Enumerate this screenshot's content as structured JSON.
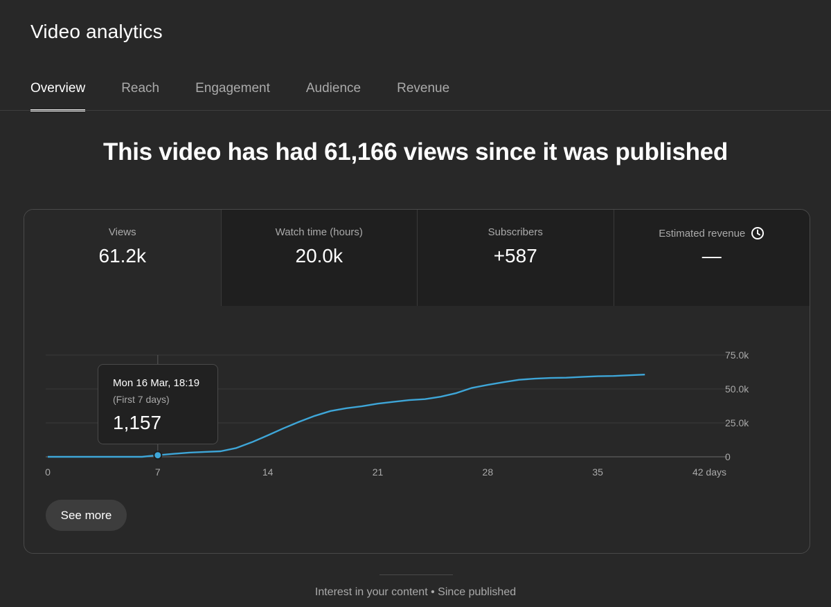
{
  "page": {
    "title": "Video analytics",
    "tabs": [
      {
        "label": "Overview",
        "active": true
      },
      {
        "label": "Reach",
        "active": false
      },
      {
        "label": "Engagement",
        "active": false
      },
      {
        "label": "Audience",
        "active": false
      },
      {
        "label": "Revenue",
        "active": false
      }
    ],
    "headline": "This video has had 61,166 views since it was published"
  },
  "metrics": [
    {
      "label": "Views",
      "value": "61.2k",
      "active": true
    },
    {
      "label": "Watch time (hours)",
      "value": "20.0k",
      "active": false
    },
    {
      "label": "Subscribers",
      "value": "+587",
      "active": false
    },
    {
      "label": "Estimated revenue",
      "value": "—",
      "active": false,
      "icon": "clock-icon"
    }
  ],
  "tooltip": {
    "date": "Mon 16 Mar, 18:19",
    "subtitle": "(First 7 days)",
    "value": "1,157"
  },
  "see_more_label": "See more",
  "footer": {
    "text": "Interest in your content • Since published"
  },
  "colors": {
    "line": "#3ea6d8",
    "background": "#282828",
    "metric_inactive_bg": "#1f1f1f"
  },
  "chart_data": {
    "type": "line",
    "x_tick_labels": [
      "0",
      "7",
      "14",
      "21",
      "28",
      "35",
      "42 days"
    ],
    "y_tick_labels": [
      "0",
      "25.0k",
      "50.0k",
      "75.0k"
    ],
    "xlim": [
      0,
      42
    ],
    "ylim": [
      0,
      75000
    ],
    "grid": true,
    "series": [
      {
        "x": [
          0,
          1,
          2,
          3,
          4,
          5,
          6,
          7,
          8,
          9,
          10,
          11,
          12,
          13,
          14,
          15,
          16,
          17,
          18,
          19,
          20,
          21,
          22,
          23,
          24,
          25,
          26,
          27,
          28,
          29,
          30,
          31,
          32,
          33,
          34,
          35,
          36,
          37,
          38
        ],
        "y": [
          0,
          0,
          0,
          0,
          0,
          0,
          0,
          1157,
          2200,
          3100,
          3600,
          4100,
          6500,
          10800,
          15800,
          21000,
          25800,
          30200,
          33800,
          35800,
          37300,
          39200,
          40500,
          41800,
          42500,
          44300,
          47000,
          50800,
          53000,
          55000,
          56800,
          57600,
          58100,
          58300,
          58900,
          59400,
          59600,
          60100,
          60600
        ]
      }
    ],
    "highlight": {
      "x": 7,
      "y": 1157
    }
  }
}
